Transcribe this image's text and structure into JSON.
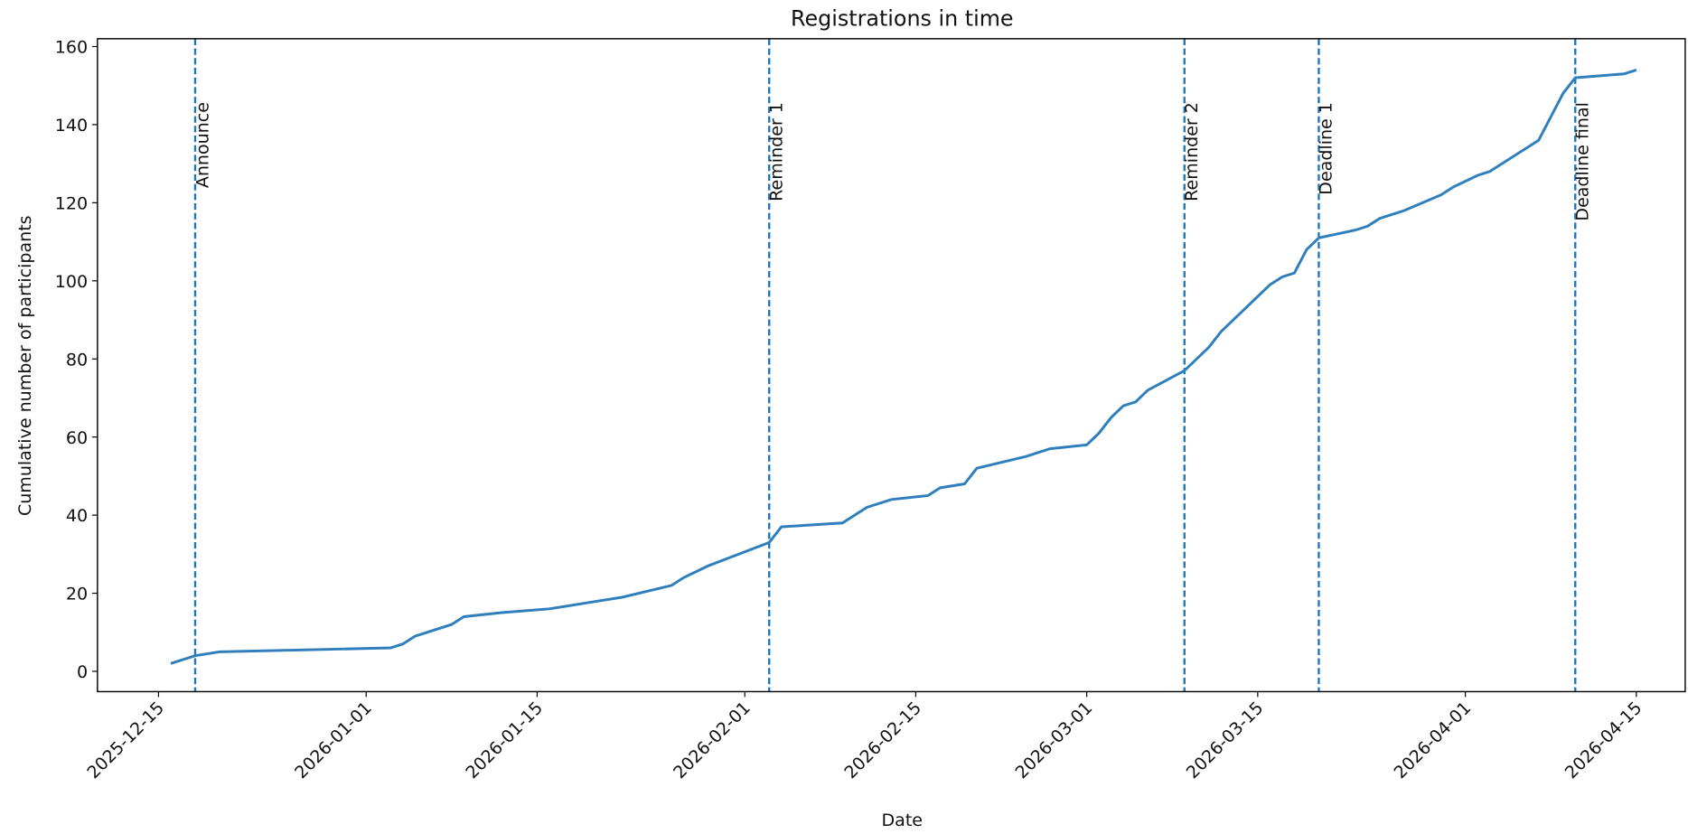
{
  "chart_data": {
    "type": "line",
    "title": "Registrations in time",
    "xlabel": "Date",
    "ylabel": "Cumulative number of participants",
    "x": [
      "2025-12-16",
      "2025-12-18",
      "2025-12-20",
      "2026-01-03",
      "2026-01-04",
      "2026-01-05",
      "2026-01-08",
      "2026-01-09",
      "2026-01-12",
      "2026-01-16",
      "2026-01-20",
      "2026-01-22",
      "2026-01-26",
      "2026-01-27",
      "2026-01-29",
      "2026-02-03",
      "2026-02-04",
      "2026-02-09",
      "2026-02-11",
      "2026-02-13",
      "2026-02-16",
      "2026-02-17",
      "2026-02-19",
      "2026-02-20",
      "2026-02-24",
      "2026-02-26",
      "2026-03-01",
      "2026-03-02",
      "2026-03-03",
      "2026-03-04",
      "2026-03-05",
      "2026-03-06",
      "2026-03-09",
      "2026-03-11",
      "2026-03-12",
      "2026-03-14",
      "2026-03-16",
      "2026-03-17",
      "2026-03-18",
      "2026-03-19",
      "2026-03-20",
      "2026-03-23",
      "2026-03-24",
      "2026-03-25",
      "2026-03-27",
      "2026-03-30",
      "2026-03-31",
      "2026-04-02",
      "2026-04-03",
      "2026-04-07",
      "2026-04-09",
      "2026-04-10",
      "2026-04-14",
      "2026-04-15"
    ],
    "series": [
      {
        "name": "Registrations",
        "color": "#2f7fbd",
        "values": [
          2,
          4,
          5,
          6,
          7,
          9,
          12,
          14,
          15,
          16,
          18,
          19,
          22,
          24,
          27,
          33,
          37,
          38,
          42,
          44,
          45,
          47,
          48,
          52,
          55,
          57,
          58,
          61,
          65,
          68,
          69,
          72,
          77,
          83,
          87,
          93,
          99,
          101,
          102,
          108,
          111,
          113,
          114,
          116,
          118,
          122,
          124,
          127,
          128,
          136,
          148,
          152,
          153,
          154
        ]
      }
    ],
    "events": [
      {
        "date": "2025-12-18",
        "label": "Announce"
      },
      {
        "date": "2026-02-03",
        "label": "Reminder 1"
      },
      {
        "date": "2026-03-09",
        "label": "Reminder 2"
      },
      {
        "date": "2026-03-20",
        "label": "Deadline 1"
      },
      {
        "date": "2026-04-10",
        "label": "Deadline final"
      }
    ],
    "event_color": "#1f77b4",
    "xlim": [
      "2025-12-10",
      "2026-04-19"
    ],
    "xticks": [
      "2025-12-15",
      "2026-01-01",
      "2026-01-15",
      "2026-02-01",
      "2026-02-15",
      "2026-03-01",
      "2026-03-15",
      "2026-04-01",
      "2026-04-15"
    ],
    "ylim": [
      -5.2,
      162
    ],
    "yticks": [
      0,
      20,
      40,
      60,
      80,
      100,
      120,
      140,
      160
    ],
    "grid": false
  }
}
